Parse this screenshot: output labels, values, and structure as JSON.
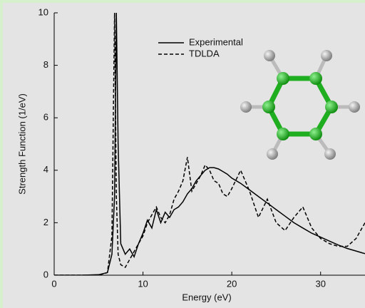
{
  "chart_data": {
    "type": "line",
    "xlabel": "Energy (eV)",
    "ylabel": "Strength Function (1/eV)",
    "x": [
      0,
      3,
      5,
      6,
      6.5,
      6.8,
      7.0,
      7.2,
      7.5,
      8,
      8.5,
      9,
      9.5,
      10,
      10.5,
      11,
      11.5,
      12,
      12.5,
      13,
      13.5,
      14,
      14.5,
      15,
      15.5,
      16,
      16.5,
      17,
      17.5,
      18,
      18.5,
      19,
      19.5,
      20,
      21,
      22,
      23,
      24,
      25,
      26,
      27,
      28,
      29,
      30,
      31,
      32,
      33,
      34,
      35
    ],
    "series": [
      {
        "name": "Experimental",
        "color": "#000000",
        "dash": "solid",
        "values": [
          0,
          0,
          0.02,
          0.1,
          0.8,
          3,
          10,
          5,
          1.2,
          0.8,
          1.0,
          0.7,
          1.2,
          1.6,
          2.1,
          1.8,
          2.5,
          2.0,
          2.4,
          2.2,
          2.5,
          2.6,
          2.8,
          3.1,
          3.3,
          3.6,
          3.8,
          4.0,
          4.1,
          4.1,
          4.05,
          3.95,
          3.85,
          3.7,
          3.5,
          3.25,
          3.0,
          2.75,
          2.5,
          2.25,
          2.0,
          1.8,
          1.6,
          1.45,
          1.3,
          1.15,
          1.02,
          0.92,
          0.82
        ]
      },
      {
        "name": "TDLDA",
        "color": "#000000",
        "dash": "dashed",
        "values": [
          0,
          0,
          0,
          0.1,
          1.5,
          10,
          3,
          0.8,
          0.4,
          0.3,
          0.6,
          0.9,
          1.2,
          1.5,
          2.0,
          2.3,
          2.6,
          2.2,
          2.0,
          2.3,
          2.9,
          3.2,
          3.6,
          4.5,
          3.2,
          3.5,
          3.8,
          4.2,
          4.0,
          3.6,
          3.5,
          3.1,
          3.0,
          3.3,
          4.0,
          3.2,
          2.2,
          2.9,
          2.0,
          1.7,
          2.2,
          2.6,
          1.8,
          1.4,
          1.2,
          1.1,
          1.1,
          1.4,
          2.0
        ]
      }
    ],
    "xlim": [
      0,
      35
    ],
    "xticks": [
      0,
      10,
      20,
      30
    ],
    "ylim": [
      0,
      10
    ],
    "yticks": [
      0,
      2,
      4,
      6,
      8,
      10
    ]
  }
}
